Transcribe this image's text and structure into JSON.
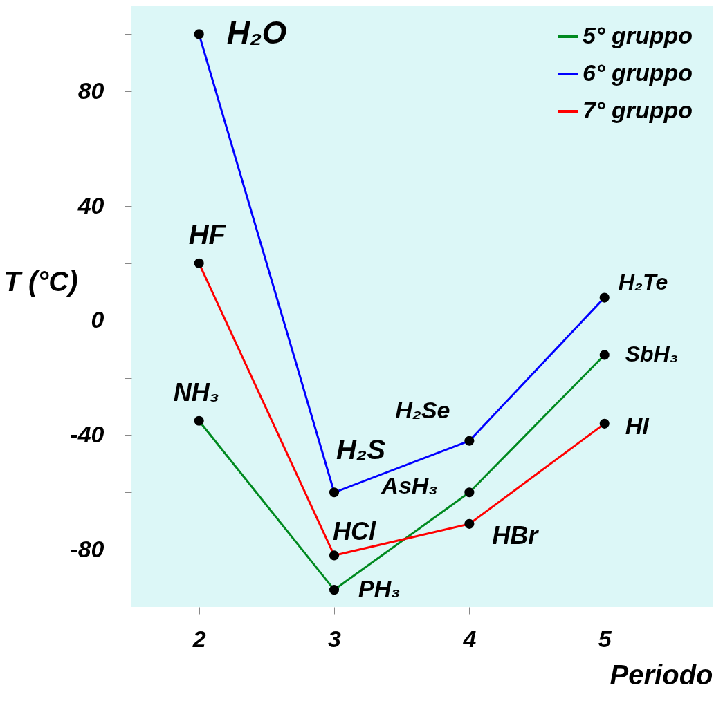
{
  "chart_data": {
    "type": "line",
    "xlabel": "Periodo",
    "ylabel": "T (°C)",
    "x": [
      2,
      3,
      4,
      5
    ],
    "series": [
      {
        "name": "5° gruppo",
        "color": "#008a20",
        "values": [
          -35,
          -94,
          -60,
          -12
        ]
      },
      {
        "name": "6° gruppo",
        "color": "#0000ff",
        "values": [
          100,
          -60,
          -42,
          8
        ]
      },
      {
        "name": "7° gruppo",
        "color": "#ff0000",
        "values": [
          20,
          -82,
          -71,
          -36
        ]
      }
    ],
    "xlim": [
      1.5,
      5.8
    ],
    "xticks": [
      2,
      3,
      4,
      5
    ],
    "ylim": [
      -100,
      110
    ],
    "yticks": [
      {
        "value": 100,
        "label": null
      },
      80,
      {
        "value": 60,
        "label": null
      },
      40,
      {
        "value": 20,
        "label": null
      },
      0,
      {
        "value": -20,
        "label": null
      },
      -40,
      {
        "value": -60,
        "label": null
      },
      -80
    ],
    "grid": false,
    "legend": "top right",
    "marker": "circle",
    "line_style": "solid",
    "annotations": [
      {
        "text": "H₂O",
        "x": 2,
        "y": 100
      },
      {
        "text": "HF",
        "x": 2,
        "y": 20
      },
      {
        "text": "NH₃",
        "x": 2,
        "y": -35
      },
      {
        "text": "H₂S",
        "x": 3,
        "y": -60
      },
      {
        "text": "H₂Se",
        "x": 4,
        "y": -42
      },
      {
        "text": "H₂Te",
        "x": 5,
        "y": 8
      },
      {
        "text": "HCl",
        "x": 3,
        "y": -82
      },
      {
        "text": "PH₃",
        "x": 3,
        "y": -94
      },
      {
        "text": "AsH₃",
        "x": 4,
        "y": -60
      },
      {
        "text": "HBr",
        "x": 4,
        "y": -71
      },
      {
        "text": "SbH₃",
        "x": 5,
        "y": -12
      },
      {
        "text": "HI",
        "x": 5,
        "y": -36
      }
    ]
  }
}
